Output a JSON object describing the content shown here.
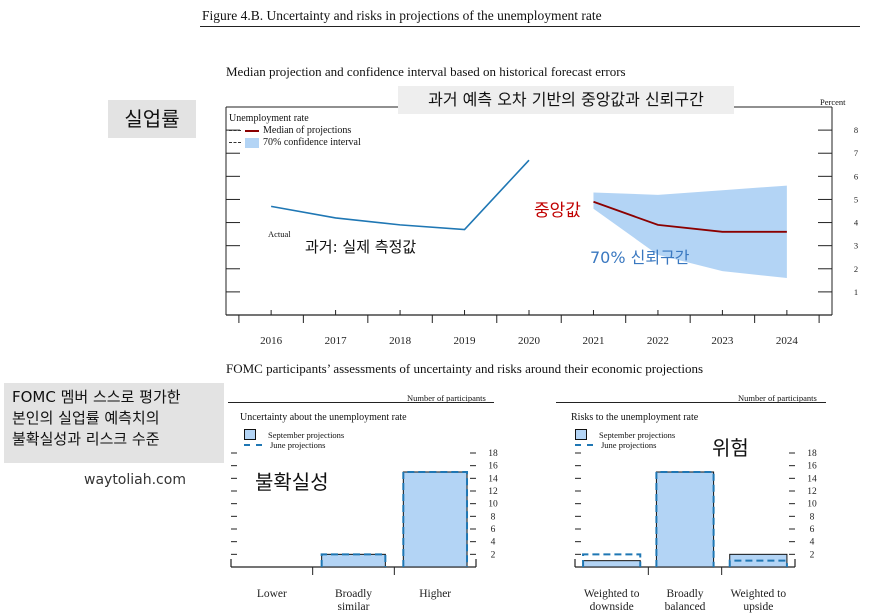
{
  "figure": {
    "title": "Figure 4.B. Uncertainty and risks in projections of the unemployment rate",
    "top_subtitle": "Median projection and confidence interval based on historical forecast errors",
    "bottom_subtitle": "FOMC participants’ assessments of uncertainty and risks around their economic projections"
  },
  "annotations": {
    "unemployment_tag": "실업률",
    "top_banner": "과거 예측 오차 기반의 중앙값과 신뢰구간",
    "median_tag": "중앙값",
    "ci_tag": "70% 신뢰구간",
    "actual_tag": "과거: 실제 측정값",
    "fomc_note": [
      "FOMC 멤버 스스로 평가한",
      "본인의 실업률 예측치의",
      "불확실성과 리스크 수준"
    ],
    "watermark": "waytoliah.com",
    "uncertainty_tag": "불확실성",
    "risk_tag": "위험"
  },
  "colors": {
    "actual": "#1f77b4",
    "median": "#8b0000",
    "ci_fill": "#b3d4f5",
    "bar_fill": "#b3d4f5",
    "june_dash": "#1f77b4",
    "median_tag_color": "#c00000",
    "ci_tag_color": "#3a78c0"
  },
  "chart_data": [
    {
      "id": "top",
      "type": "line",
      "title": "Unemployment rate",
      "ylabel": "Percent",
      "ylim": [
        0,
        9
      ],
      "yticks": [
        "1",
        "2",
        "3",
        "4",
        "5",
        "6",
        "7",
        "8"
      ],
      "xlim": [
        2015.3,
        2024.7
      ],
      "xticks": [
        "2016",
        "2017",
        "2018",
        "2019",
        "2020",
        "2021",
        "2022",
        "2023",
        "2024"
      ],
      "legend": [
        "Median of projections",
        "70% confidence interval"
      ],
      "actual_label": "Actual",
      "series": [
        {
          "name": "Actual",
          "x": [
            2016.0,
            2017.0,
            2018.0,
            2019.0,
            2020.0
          ],
          "values": [
            4.7,
            4.2,
            3.9,
            3.7,
            6.7
          ]
        },
        {
          "name": "Median of projections",
          "x": [
            2021.0,
            2022.0,
            2023.0,
            2024.0
          ],
          "values": [
            4.9,
            3.9,
            3.6,
            3.6
          ]
        }
      ],
      "confidence_interval": {
        "x": [
          2021.0,
          2022.0,
          2023.0,
          2024.0
        ],
        "lower": [
          4.6,
          2.6,
          1.9,
          1.6
        ],
        "upper": [
          5.3,
          5.2,
          5.4,
          5.6
        ]
      }
    },
    {
      "id": "uncertainty",
      "type": "bar",
      "title": "Uncertainty about the unemployment rate",
      "ylabel": "Number of participants",
      "ylim": [
        0,
        18
      ],
      "yticks": [
        "2",
        "4",
        "6",
        "8",
        "10",
        "12",
        "14",
        "16",
        "18"
      ],
      "categories": [
        "Lower",
        "Broadly similar",
        "Higher"
      ],
      "category_lines": [
        [
          "Lower"
        ],
        [
          "Broadly",
          "similar"
        ],
        [
          "Higher"
        ]
      ],
      "series": [
        {
          "name": "September projections",
          "values": [
            0,
            2,
            15
          ]
        },
        {
          "name": "June projections",
          "values": [
            0,
            2,
            15
          ]
        }
      ]
    },
    {
      "id": "risks",
      "type": "bar",
      "title": "Risks to the unemployment rate",
      "ylabel": "Number of participants",
      "ylim": [
        0,
        18
      ],
      "yticks": [
        "2",
        "4",
        "6",
        "8",
        "10",
        "12",
        "14",
        "16",
        "18"
      ],
      "categories": [
        "Weighted to downside",
        "Broadly balanced",
        "Weighted to upside"
      ],
      "category_lines": [
        [
          "Weighted to",
          "downside"
        ],
        [
          "Broadly",
          "balanced"
        ],
        [
          "Weighted to",
          "upside"
        ]
      ],
      "series": [
        {
          "name": "September projections",
          "values": [
            1,
            15,
            2
          ]
        },
        {
          "name": "June projections",
          "values": [
            2,
            15,
            1
          ]
        }
      ]
    }
  ]
}
